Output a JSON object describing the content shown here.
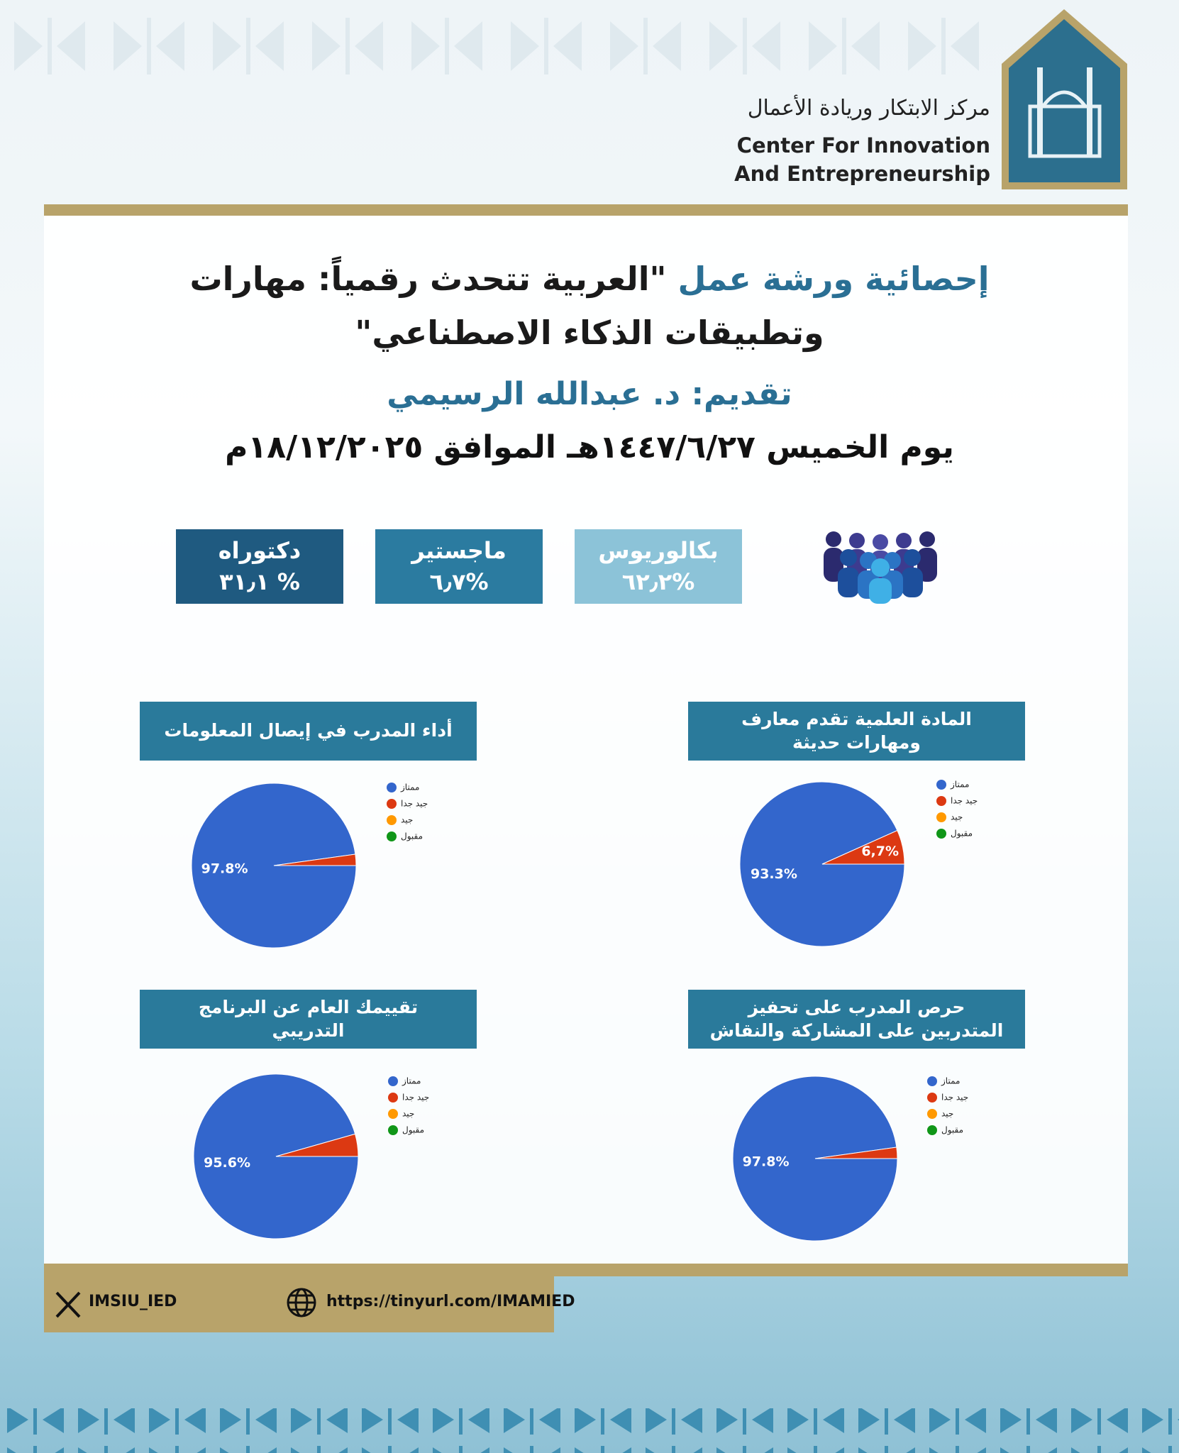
{
  "header": {
    "logo_arabic": "مركز الابتكار وريادة الأعمال",
    "logo_english_1": "Center For Innovation",
    "logo_english_2": "And Entrepreneurship"
  },
  "title_highlight": "إحصائية ورشة عمل",
  "title": "\"العربية تتحدث رقمياً: مهارات وتطبيقات الذكاء الاصطناعي\"",
  "presenter": "تقديم: د. عبدالله الرسيمي",
  "date": "يوم الخميس ١٤٤٧/٦/٢٧هـ الموافق ١٨/١٢/٢٠٢٥م",
  "degrees": [
    {
      "label": "بكالوريوس",
      "value": "%٦٢٫٢"
    },
    {
      "label": "ماجستير",
      "value": "%٦٫٧"
    },
    {
      "label": "دكتوراه",
      "value": "% ٣١٫١"
    }
  ],
  "chart_data": [
    {
      "type": "pie",
      "title": "المادة العلمية تقدم معارف ومهارات حديثة",
      "categories": [
        "ممتاز",
        "جيد جدا",
        "جيد",
        "مقبول"
      ],
      "colors": [
        "#3366cc",
        "#dc3912",
        "#ff9900",
        "#109618"
      ],
      "values": [
        93.3,
        6.7,
        0,
        0
      ],
      "value_labels": [
        "93.3%",
        "6,7%",
        null,
        null
      ]
    },
    {
      "type": "pie",
      "title": "أداء المدرب في إيصال المعلومات",
      "categories": [
        "ممتاز",
        "جيد جدا",
        "جيد",
        "مقبول"
      ],
      "colors": [
        "#3366cc",
        "#dc3912",
        "#ff9900",
        "#109618"
      ],
      "values": [
        97.8,
        2.2,
        0,
        0
      ],
      "value_labels": [
        "97.8%",
        null,
        null,
        null
      ]
    },
    {
      "type": "pie",
      "title": "حرص المدرب على تحفيز المتدربين على المشاركة والنقاش",
      "categories": [
        "ممتاز",
        "جيد جدا",
        "جيد",
        "مقبول"
      ],
      "colors": [
        "#3366cc",
        "#dc3912",
        "#ff9900",
        "#109618"
      ],
      "values": [
        97.8,
        2.2,
        0,
        0
      ],
      "value_labels": [
        "97.8%",
        null,
        null,
        null
      ]
    },
    {
      "type": "pie",
      "title": "تقييمك العام عن البرنامج التدريبي",
      "categories": [
        "ممتاز",
        "جيد جدا",
        "جيد",
        "مقبول"
      ],
      "colors": [
        "#3366cc",
        "#dc3912",
        "#ff9900",
        "#109618"
      ],
      "values": [
        95.6,
        4.4,
        0,
        0
      ],
      "value_labels": [
        "95.6%",
        null,
        null,
        null
      ]
    }
  ],
  "footer": {
    "x_handle": "IMSIU_IED",
    "url": "https://tinyurl.com/IMAMIED"
  }
}
